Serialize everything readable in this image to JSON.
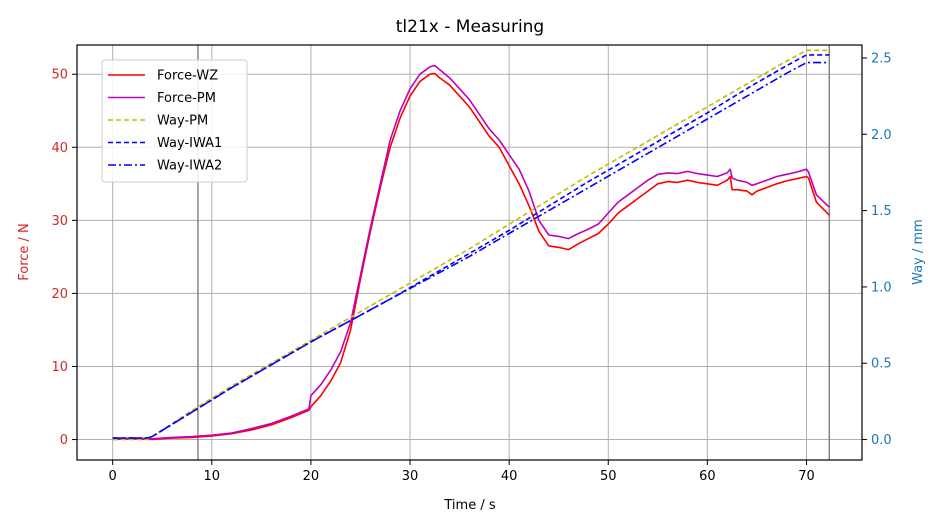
{
  "chart_data": {
    "type": "line",
    "title": "tl21x - Measuring",
    "xlabel": "Time / s",
    "ylabel_left": "Force / N",
    "ylabel_right": "Way / mm",
    "xlim": [
      -3.6,
      75.6
    ],
    "ylim_left": [
      -2.8,
      54
    ],
    "ylim_right": [
      -0.134,
      2.585
    ],
    "x_ticks": [
      0,
      10,
      20,
      30,
      40,
      50,
      60,
      70
    ],
    "y_left_ticks": [
      0,
      10,
      20,
      30,
      40,
      50
    ],
    "y_right_ticks": [
      "0.0",
      "0.5",
      "1.0",
      "1.5",
      "2.0",
      "2.5"
    ],
    "vertical_markers": [
      8.6,
      72.3
    ],
    "grid": true,
    "legend_position": "upper-left",
    "colors": {
      "left_axis": "#d62728",
      "right_axis": "#1f77b4",
      "grid": "#b0b0b0",
      "marker_line": "#808080"
    },
    "series": [
      {
        "name": "Force-WZ",
        "axis": "left",
        "color": "#ff0000",
        "dash": "solid",
        "x": [
          0,
          2,
          4,
          6,
          8,
          10,
          12,
          14,
          16,
          18,
          19.8,
          20,
          21,
          22,
          23,
          24,
          25,
          26,
          27,
          28,
          29,
          30,
          31,
          32,
          32.5,
          33,
          34,
          35,
          36,
          37,
          38,
          39,
          40,
          41,
          42,
          43,
          44,
          45,
          46,
          47,
          48,
          49,
          50,
          51,
          52,
          53,
          54,
          55,
          56,
          57,
          58,
          59,
          60,
          61,
          62,
          62.3,
          62.5,
          63,
          64,
          64.5,
          65,
          66,
          67,
          68,
          69,
          70,
          70.2,
          71,
          72.3
        ],
        "values": [
          0,
          0.1,
          0,
          0.2,
          0.3,
          0.5,
          0.8,
          1.3,
          2,
          3,
          4,
          4.5,
          6,
          8,
          10.5,
          15,
          22,
          28.5,
          34.5,
          40,
          44,
          47,
          49,
          50,
          50.1,
          49.5,
          48.5,
          47,
          45.5,
          43.5,
          41.5,
          40,
          37.5,
          35,
          32,
          28.5,
          26.5,
          26.3,
          26,
          26.8,
          27.5,
          28.2,
          29.5,
          31,
          32,
          33,
          34,
          35,
          35.3,
          35.2,
          35.5,
          35.2,
          35,
          34.8,
          35.5,
          36,
          34.2,
          34.2,
          34,
          33.5,
          34,
          34.5,
          35,
          35.4,
          35.7,
          36,
          35.8,
          32.5,
          30.7
        ]
      },
      {
        "name": "Force-PM",
        "axis": "left",
        "color": "#bf00bf",
        "dash": "solid",
        "x": [
          0,
          2,
          4,
          6,
          8,
          10,
          12,
          14,
          16,
          18,
          19.8,
          20,
          21,
          22,
          23,
          24,
          25,
          26,
          27,
          28,
          29,
          30,
          31,
          32,
          32.5,
          33,
          34,
          35,
          36,
          37,
          38,
          39,
          40,
          41,
          42,
          43,
          44,
          45,
          46,
          47,
          48,
          49,
          50,
          51,
          52,
          53,
          54,
          55,
          56,
          57,
          58,
          59,
          60,
          61,
          62,
          62.3,
          62.5,
          63,
          64,
          64.5,
          65,
          66,
          67,
          68,
          69,
          70,
          70.2,
          71,
          72.3
        ],
        "values": [
          0.1,
          0.2,
          0.1,
          0.3,
          0.4,
          0.6,
          0.9,
          1.5,
          2.2,
          3.2,
          4.2,
          6,
          7.5,
          9.5,
          12,
          16,
          22.5,
          29,
          35,
          41,
          45,
          48,
          50,
          51,
          51.2,
          50.6,
          49.5,
          48,
          46.5,
          44.5,
          42.5,
          41,
          39,
          37,
          34,
          30,
          28,
          27.8,
          27.5,
          28.2,
          28.8,
          29.5,
          31,
          32.5,
          33.5,
          34.5,
          35.5,
          36.3,
          36.5,
          36.4,
          36.7,
          36.4,
          36.2,
          36,
          36.5,
          37,
          35.8,
          35.5,
          35.2,
          34.8,
          35,
          35.5,
          36,
          36.3,
          36.6,
          37,
          36.6,
          33.5,
          31.8
        ]
      },
      {
        "name": "Way-PM",
        "axis": "right",
        "color": "#bfbf00",
        "dash": "dashed",
        "x": [
          0,
          3.5,
          4,
          8,
          12,
          16,
          20,
          24,
          28,
          32,
          36,
          40,
          44,
          48,
          52,
          56,
          60,
          64,
          68,
          70,
          72.3
        ],
        "values": [
          0,
          0,
          0.02,
          0.19,
          0.35,
          0.5,
          0.65,
          0.8,
          0.95,
          1.1,
          1.25,
          1.41,
          1.57,
          1.73,
          1.88,
          2.03,
          2.18,
          2.33,
          2.48,
          2.55,
          2.55
        ]
      },
      {
        "name": "Way-IWA1",
        "axis": "right",
        "color": "#0000ff",
        "dash": "dashed",
        "x": [
          0,
          3.5,
          4,
          8,
          12,
          16,
          20,
          24,
          28,
          32,
          36,
          40,
          44,
          48,
          52,
          56,
          60,
          64,
          68,
          70,
          72.3
        ],
        "values": [
          0.01,
          0.01,
          0.02,
          0.18,
          0.34,
          0.49,
          0.64,
          0.78,
          0.92,
          1.07,
          1.22,
          1.37,
          1.53,
          1.69,
          1.84,
          1.99,
          2.14,
          2.3,
          2.45,
          2.52,
          2.52
        ]
      },
      {
        "name": "Way-IWA2",
        "axis": "right",
        "color": "#0000ff",
        "dash": "dashdot",
        "x": [
          0,
          3.5,
          4,
          8,
          12,
          16,
          20,
          24,
          28,
          32,
          36,
          40,
          44,
          48,
          52,
          56,
          60,
          64,
          68,
          70,
          72.3
        ],
        "values": [
          0.01,
          0.01,
          0.02,
          0.18,
          0.34,
          0.49,
          0.64,
          0.78,
          0.92,
          1.06,
          1.2,
          1.35,
          1.5,
          1.65,
          1.8,
          1.95,
          2.1,
          2.25,
          2.4,
          2.47,
          2.47
        ]
      }
    ]
  }
}
